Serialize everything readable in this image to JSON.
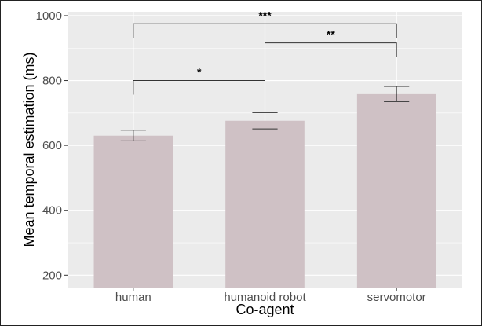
{
  "chart_data": {
    "type": "bar",
    "title": "",
    "xlabel": "Co-agent",
    "ylabel": "Mean temporal estimation (ms)",
    "categories": [
      "human",
      "humanoid robot",
      "servomotor"
    ],
    "values": [
      630,
      676,
      758
    ],
    "error_bars": [
      {
        "low": 614,
        "high": 647
      },
      {
        "low": 651,
        "high": 701
      },
      {
        "low": 735,
        "high": 782
      }
    ],
    "ylim": [
      162,
      1012
    ],
    "yticks": [
      200,
      400,
      600,
      800,
      1000
    ],
    "grid": true,
    "legend": "none",
    "significance": [
      {
        "from": "human",
        "to": "humanoid robot",
        "label": "*",
        "y": 800
      },
      {
        "from": "humanoid robot",
        "to": "servomotor",
        "label": "**",
        "y": 916
      },
      {
        "from": "human",
        "to": "servomotor",
        "label": "***",
        "y": 975
      }
    ],
    "colors": {
      "bar": "#cfc1c5",
      "panel": "#ebebeb",
      "grid": "#ffffff",
      "error_bar": "#333333",
      "bracket": "#333333"
    }
  }
}
